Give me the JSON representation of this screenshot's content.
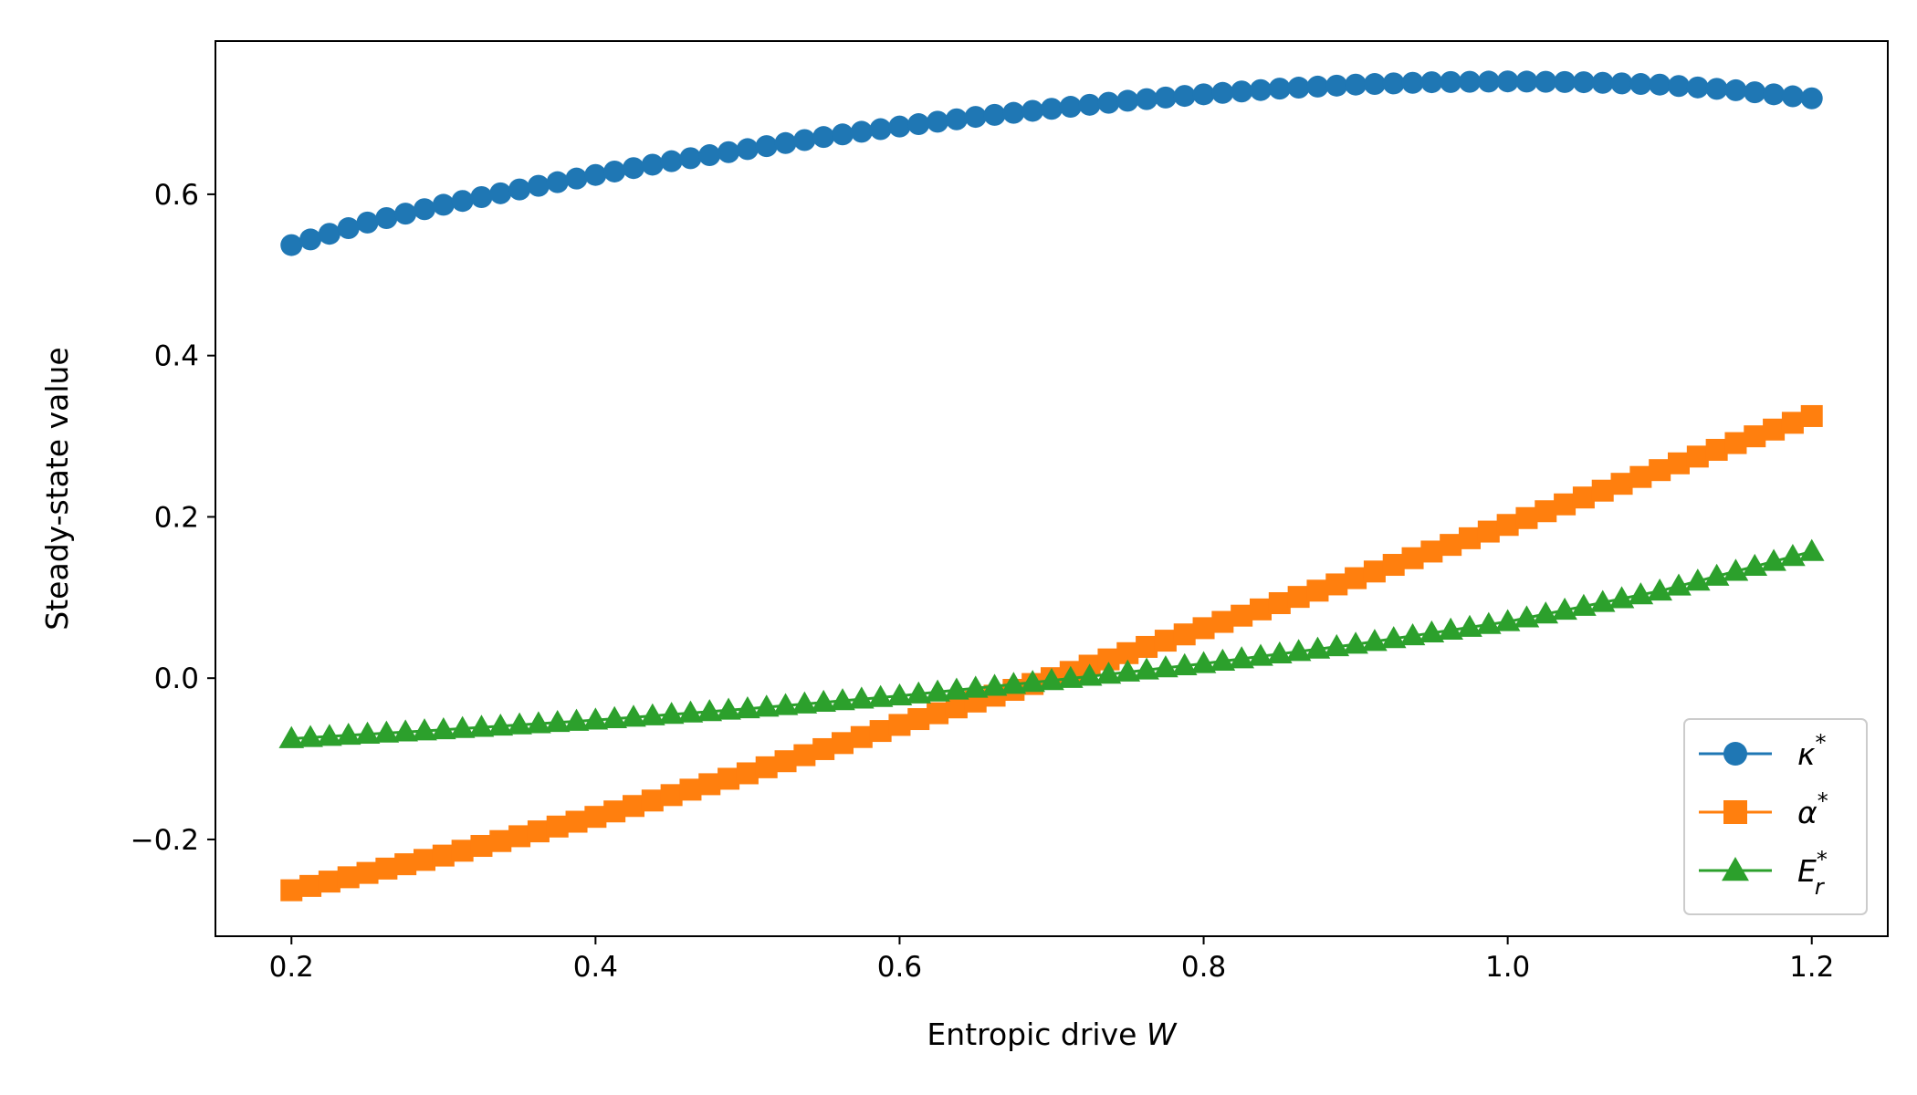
{
  "chart_data": {
    "type": "line",
    "title": "",
    "xlabel": "Entropic drive ",
    "xlabel_var": "W",
    "ylabel": "Steady-state value",
    "xlim": [
      0.15,
      1.25
    ],
    "ylim": [
      -0.32,
      0.79
    ],
    "xticks": [
      0.2,
      0.4,
      0.6,
      0.8,
      1.0,
      1.2
    ],
    "xtick_labels": [
      "0.2",
      "0.4",
      "0.6",
      "0.8",
      "1.0",
      "1.2"
    ],
    "yticks": [
      -0.2,
      0.0,
      0.2,
      0.4,
      0.6
    ],
    "ytick_labels": [
      "−0.2",
      "0.0",
      "0.2",
      "0.4",
      "0.6"
    ],
    "grid": false,
    "legend_position": "lower-right",
    "x_range": [
      0.2,
      1.2
    ],
    "num_points": 81,
    "series": [
      {
        "name": "κ*",
        "color": "#1f77b4",
        "marker": "circle",
        "anchors": {
          "x": [
            0.2,
            0.25,
            0.3,
            0.35,
            0.4,
            0.45,
            0.5,
            0.55,
            0.6,
            0.65,
            0.7,
            0.75,
            0.8,
            0.85,
            0.9,
            0.95,
            1.0,
            1.05,
            1.1,
            1.15,
            1.2
          ],
          "y": [
            0.537,
            0.565,
            0.587,
            0.606,
            0.624,
            0.641,
            0.656,
            0.671,
            0.684,
            0.696,
            0.706,
            0.716,
            0.724,
            0.731,
            0.736,
            0.739,
            0.74,
            0.739,
            0.736,
            0.729,
            0.719
          ]
        }
      },
      {
        "name": "α*",
        "color": "#ff7f0e",
        "marker": "square",
        "anchors": {
          "x": [
            0.2,
            0.3,
            0.4,
            0.5,
            0.6,
            0.7,
            0.8,
            0.9,
            1.0,
            1.1,
            1.2
          ],
          "y": [
            -0.263,
            -0.22,
            -0.172,
            -0.118,
            -0.058,
            0.0,
            0.062,
            0.124,
            0.19,
            0.258,
            0.325
          ]
        }
      },
      {
        "name": "E_r*",
        "name_main": "E",
        "name_sup": "*",
        "name_sub": "r",
        "color": "#2ca02c",
        "marker": "triangle",
        "anchors": {
          "x": [
            0.2,
            0.3,
            0.4,
            0.5,
            0.6,
            0.7,
            0.8,
            0.9,
            1.0,
            1.1,
            1.2
          ],
          "y": [
            -0.075,
            -0.064,
            -0.052,
            -0.038,
            -0.022,
            -0.003,
            0.018,
            0.042,
            0.07,
            0.108,
            0.157
          ]
        }
      }
    ],
    "legend": {
      "entries": [
        {
          "label_main": "κ",
          "label_sup": "*",
          "label_sub": ""
        },
        {
          "label_main": "α",
          "label_sup": "*",
          "label_sub": ""
        },
        {
          "label_main": "E",
          "label_sup": "*",
          "label_sub": "r"
        }
      ]
    }
  }
}
